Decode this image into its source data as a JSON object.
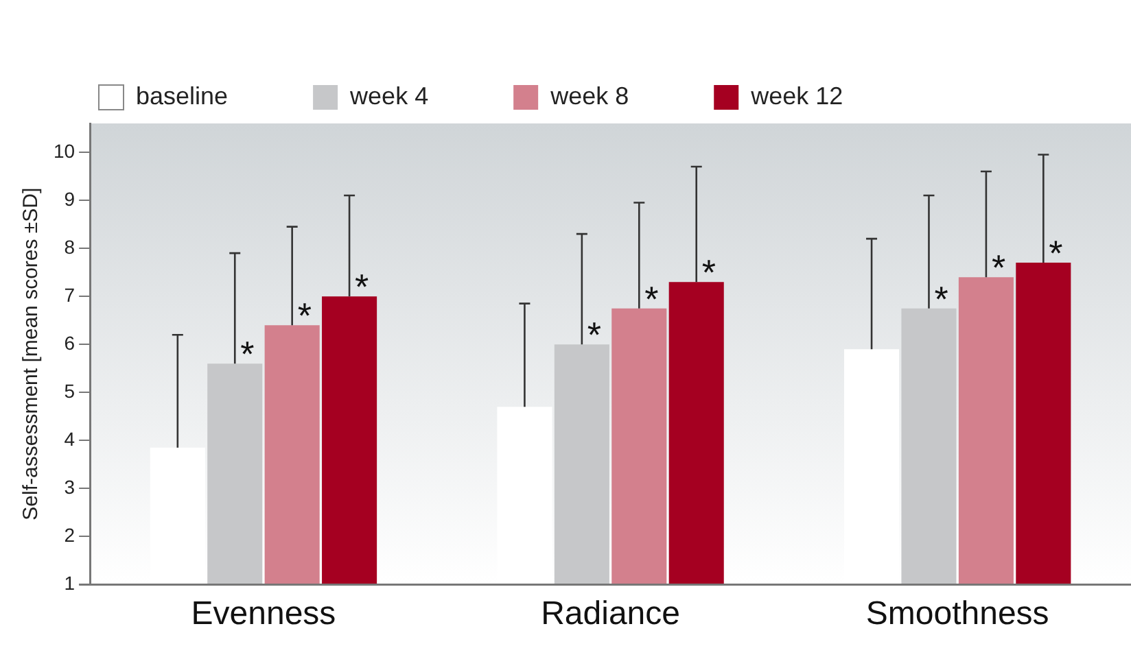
{
  "chart_data": {
    "type": "bar",
    "ylabel": "Self-assessment [mean scores ±SD]",
    "categories": [
      "Evenness",
      "Radiance",
      "Smoothness"
    ],
    "series": [
      {
        "name": "baseline",
        "color": "#ffffff",
        "values": [
          3.85,
          4.7,
          5.9
        ],
        "errors": [
          [
            3.85,
            6.2
          ],
          [
            4.7,
            6.85
          ],
          [
            5.9,
            8.2
          ]
        ]
      },
      {
        "name": "week 4",
        "color": "#c6c7c9",
        "values": [
          5.6,
          6.0,
          6.75
        ],
        "errors": [
          [
            5.6,
            7.9
          ],
          [
            6.0,
            8.3
          ],
          [
            6.75,
            9.1
          ]
        ],
        "value_labels": [
          "*",
          "*",
          "*"
        ]
      },
      {
        "name": "week 8",
        "color": "#d3808d",
        "values": [
          6.4,
          6.75,
          7.4
        ],
        "errors": [
          [
            6.4,
            8.45
          ],
          [
            6.75,
            8.95
          ],
          [
            7.4,
            9.6
          ]
        ],
        "value_labels": [
          "*",
          "*",
          "*"
        ]
      },
      {
        "name": "week 12",
        "color": "#a50021",
        "values": [
          7.0,
          7.3,
          7.7
        ],
        "errors": [
          [
            7.0,
            9.1
          ],
          [
            7.3,
            9.7
          ],
          [
            7.7,
            9.95
          ]
        ],
        "value_labels": [
          "*",
          "*",
          "*"
        ]
      }
    ],
    "ylim": [
      1,
      10.6
    ],
    "yticks": [
      1,
      2,
      3,
      4,
      5,
      6,
      7,
      8,
      9,
      10
    ],
    "grid": false,
    "legend": "top left"
  }
}
